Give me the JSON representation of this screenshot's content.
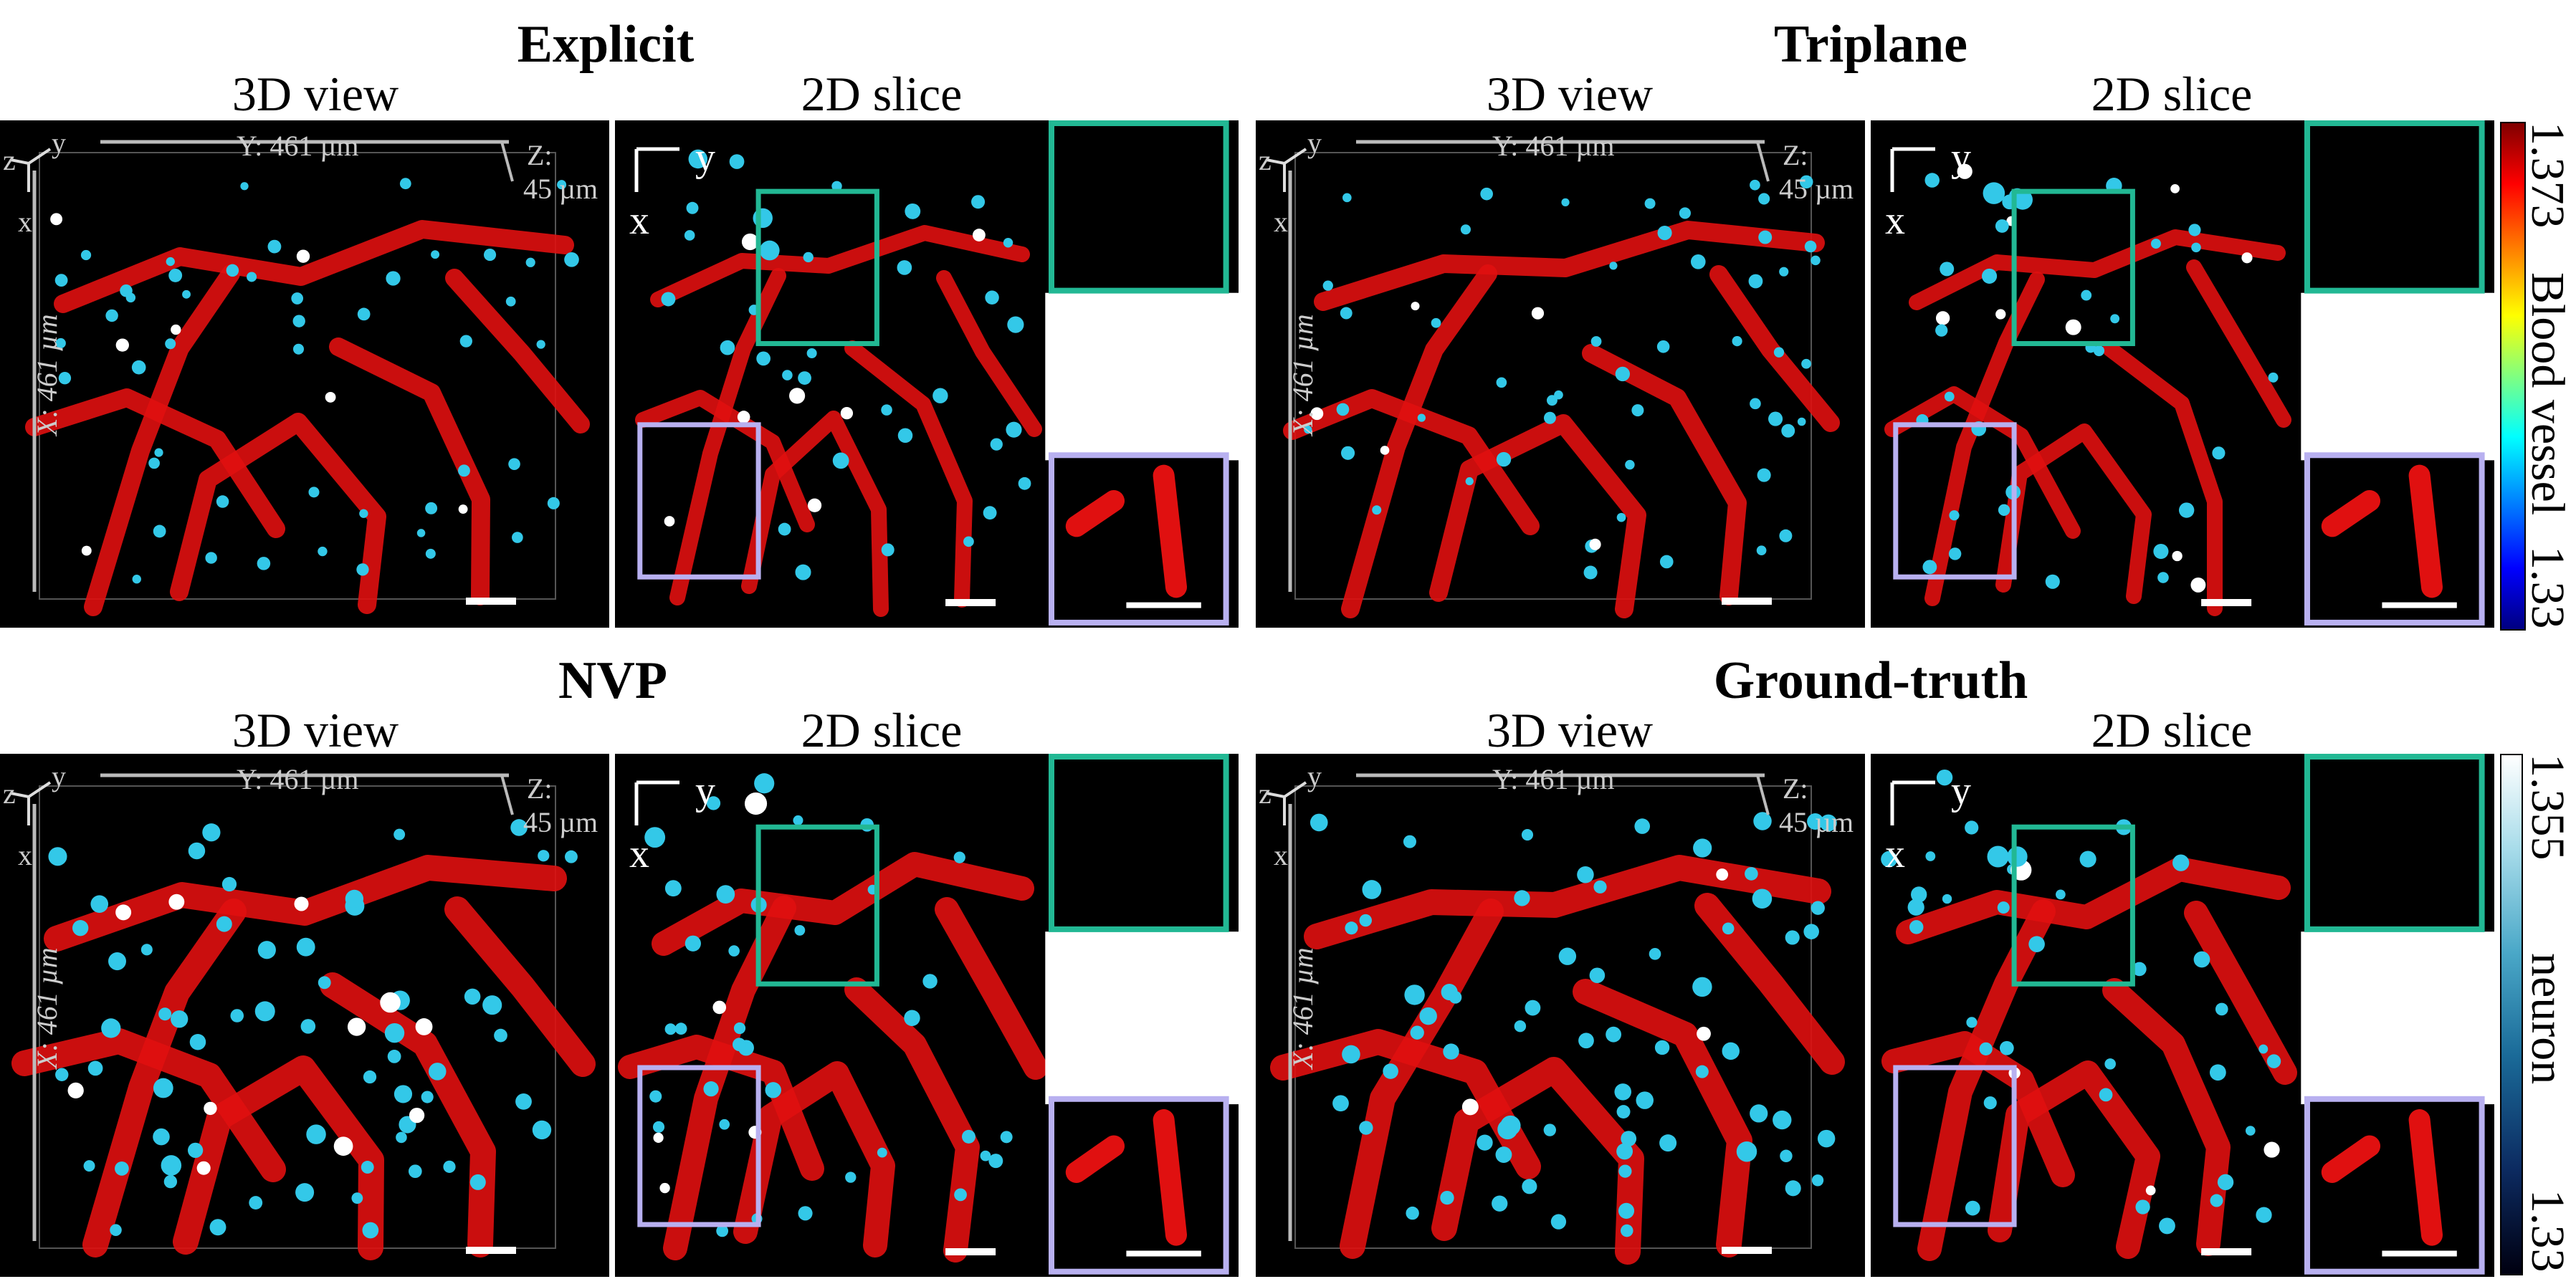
{
  "groups": [
    {
      "title": "Explicit",
      "view3d": "3D view",
      "slice2d": "2D slice"
    },
    {
      "title": "Triplane",
      "view3d": "3D view",
      "slice2d": "2D slice"
    },
    {
      "title": "NVP",
      "view3d": "3D view",
      "slice2d": "2D slice"
    },
    {
      "title": "Ground-truth",
      "view3d": "3D view",
      "slice2d": "2D slice"
    }
  ],
  "axes": {
    "y_dim": "Y: 461 µm",
    "x_dim": "X: 461 µm",
    "z_dim": "Z:",
    "z_val": "45 µm",
    "x": "x",
    "y": "y",
    "z": "z"
  },
  "colorbars": [
    {
      "top": "1.373",
      "label": "Blood vessel",
      "bottom": "1.33",
      "colormap": "jet"
    },
    {
      "top": "1.355",
      "label": "neuron",
      "bottom": "1.33",
      "colormap": "dark-blue-to-white"
    }
  ],
  "colors": {
    "vessel": "#e01010",
    "neuron": "#33c8e8",
    "neuron_bright": "#ffffff",
    "teal_box": "#22b894",
    "lavender_box": "#b8b0f0",
    "background": "#000000"
  }
}
